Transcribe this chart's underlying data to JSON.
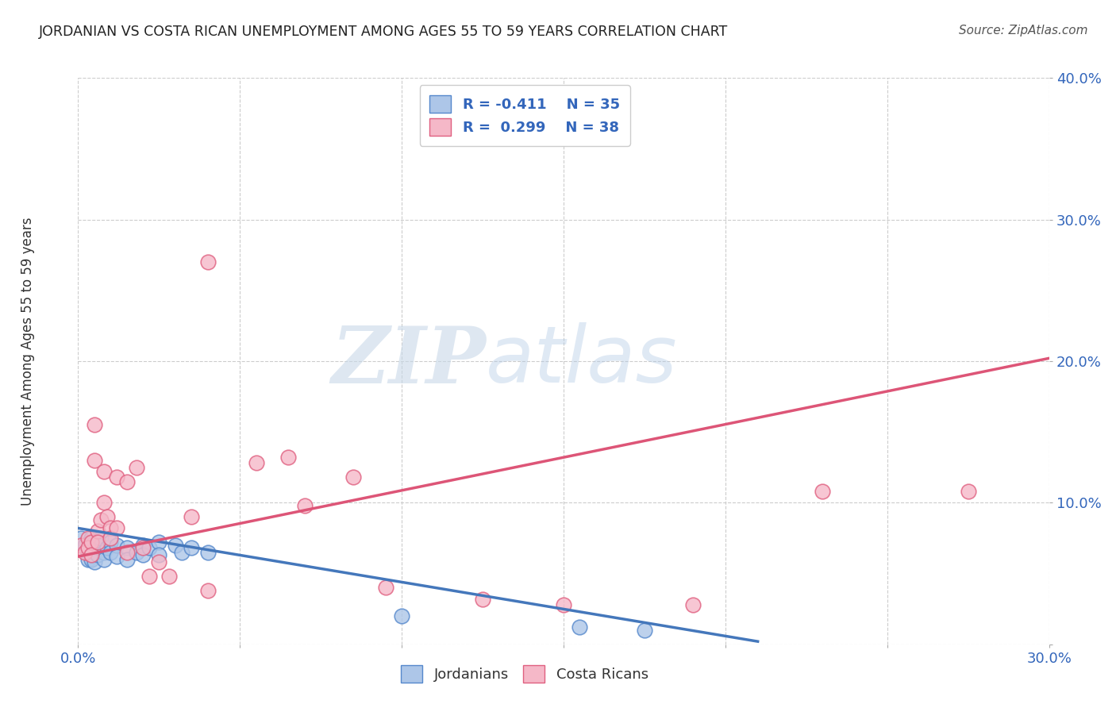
{
  "title": "JORDANIAN VS COSTA RICAN UNEMPLOYMENT AMONG AGES 55 TO 59 YEARS CORRELATION CHART",
  "source": "Source: ZipAtlas.com",
  "ylabel": "Unemployment Among Ages 55 to 59 years",
  "xlim": [
    0.0,
    0.3
  ],
  "ylim": [
    0.0,
    0.4
  ],
  "xticks": [
    0.0,
    0.05,
    0.1,
    0.15,
    0.2,
    0.25,
    0.3
  ],
  "yticks": [
    0.0,
    0.1,
    0.2,
    0.3,
    0.4
  ],
  "xtick_labels": [
    "0.0%",
    "",
    "",
    "",
    "",
    "",
    "30.0%"
  ],
  "ytick_labels": [
    "",
    "10.0%",
    "20.0%",
    "30.0%",
    "40.0%"
  ],
  "legend_blue_r": "R = -0.411",
  "legend_blue_n": "N = 35",
  "legend_pink_r": "R =  0.299",
  "legend_pink_n": "N = 38",
  "blue_fill": "#adc6e8",
  "pink_fill": "#f5b8c8",
  "blue_edge": "#5588cc",
  "pink_edge": "#e06080",
  "blue_line": "#4477bb",
  "pink_line": "#dd5577",
  "watermark_zip": "ZIP",
  "watermark_atlas": "atlas",
  "blue_scatter": [
    [
      0.001,
      0.075
    ],
    [
      0.002,
      0.07
    ],
    [
      0.003,
      0.065
    ],
    [
      0.003,
      0.06
    ],
    [
      0.004,
      0.075
    ],
    [
      0.004,
      0.068
    ],
    [
      0.004,
      0.06
    ],
    [
      0.005,
      0.072
    ],
    [
      0.005,
      0.065
    ],
    [
      0.005,
      0.058
    ],
    [
      0.006,
      0.07
    ],
    [
      0.006,
      0.063
    ],
    [
      0.007,
      0.075
    ],
    [
      0.008,
      0.065
    ],
    [
      0.008,
      0.06
    ],
    [
      0.009,
      0.068
    ],
    [
      0.01,
      0.072
    ],
    [
      0.01,
      0.065
    ],
    [
      0.012,
      0.07
    ],
    [
      0.012,
      0.062
    ],
    [
      0.015,
      0.068
    ],
    [
      0.015,
      0.06
    ],
    [
      0.018,
      0.065
    ],
    [
      0.02,
      0.07
    ],
    [
      0.02,
      0.063
    ],
    [
      0.022,
      0.068
    ],
    [
      0.025,
      0.072
    ],
    [
      0.025,
      0.063
    ],
    [
      0.03,
      0.07
    ],
    [
      0.032,
      0.065
    ],
    [
      0.035,
      0.068
    ],
    [
      0.04,
      0.065
    ],
    [
      0.1,
      0.02
    ],
    [
      0.155,
      0.012
    ],
    [
      0.175,
      0.01
    ]
  ],
  "pink_scatter": [
    [
      0.001,
      0.07
    ],
    [
      0.002,
      0.065
    ],
    [
      0.003,
      0.075
    ],
    [
      0.003,
      0.068
    ],
    [
      0.004,
      0.072
    ],
    [
      0.004,
      0.063
    ],
    [
      0.005,
      0.155
    ],
    [
      0.005,
      0.13
    ],
    [
      0.006,
      0.08
    ],
    [
      0.006,
      0.072
    ],
    [
      0.007,
      0.088
    ],
    [
      0.008,
      0.122
    ],
    [
      0.008,
      0.1
    ],
    [
      0.009,
      0.09
    ],
    [
      0.01,
      0.082
    ],
    [
      0.01,
      0.075
    ],
    [
      0.012,
      0.118
    ],
    [
      0.012,
      0.082
    ],
    [
      0.015,
      0.115
    ],
    [
      0.015,
      0.065
    ],
    [
      0.018,
      0.125
    ],
    [
      0.02,
      0.068
    ],
    [
      0.022,
      0.048
    ],
    [
      0.025,
      0.058
    ],
    [
      0.028,
      0.048
    ],
    [
      0.035,
      0.09
    ],
    [
      0.04,
      0.27
    ],
    [
      0.04,
      0.038
    ],
    [
      0.055,
      0.128
    ],
    [
      0.065,
      0.132
    ],
    [
      0.07,
      0.098
    ],
    [
      0.085,
      0.118
    ],
    [
      0.095,
      0.04
    ],
    [
      0.125,
      0.032
    ],
    [
      0.15,
      0.028
    ],
    [
      0.19,
      0.028
    ],
    [
      0.23,
      0.108
    ],
    [
      0.275,
      0.108
    ]
  ],
  "blue_trend": {
    "x_start": 0.0,
    "y_start": 0.082,
    "x_end": 0.21,
    "y_end": 0.002
  },
  "pink_trend": {
    "x_start": 0.0,
    "y_start": 0.062,
    "x_end": 0.3,
    "y_end": 0.202
  },
  "background_color": "#ffffff",
  "grid_color": "#cccccc",
  "title_color": "#222222",
  "source_color": "#555555",
  "tick_color": "#3366bb"
}
